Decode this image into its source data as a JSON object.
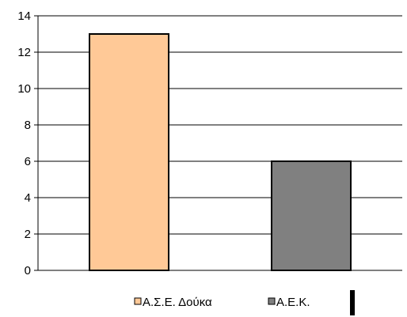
{
  "chart_data": {
    "type": "bar",
    "categories": [
      "Α.Σ.Ε. Δούκα",
      "Α.Ε.Κ."
    ],
    "values": [
      13,
      6
    ],
    "colors": [
      "#FFC997",
      "#808080"
    ],
    "ylim": [
      0,
      14
    ],
    "yticks": [
      "0",
      "2",
      "4",
      "6",
      "8",
      "10",
      "12",
      "14"
    ],
    "grid": true,
    "legend_position": "bottom",
    "legend": [
      {
        "label": "Α.Σ.Ε. Δούκα",
        "color": "#FFC997"
      },
      {
        "label": "Α.Ε.Κ.",
        "color": "#808080"
      }
    ],
    "title": "",
    "xlabel": "",
    "ylabel": ""
  }
}
